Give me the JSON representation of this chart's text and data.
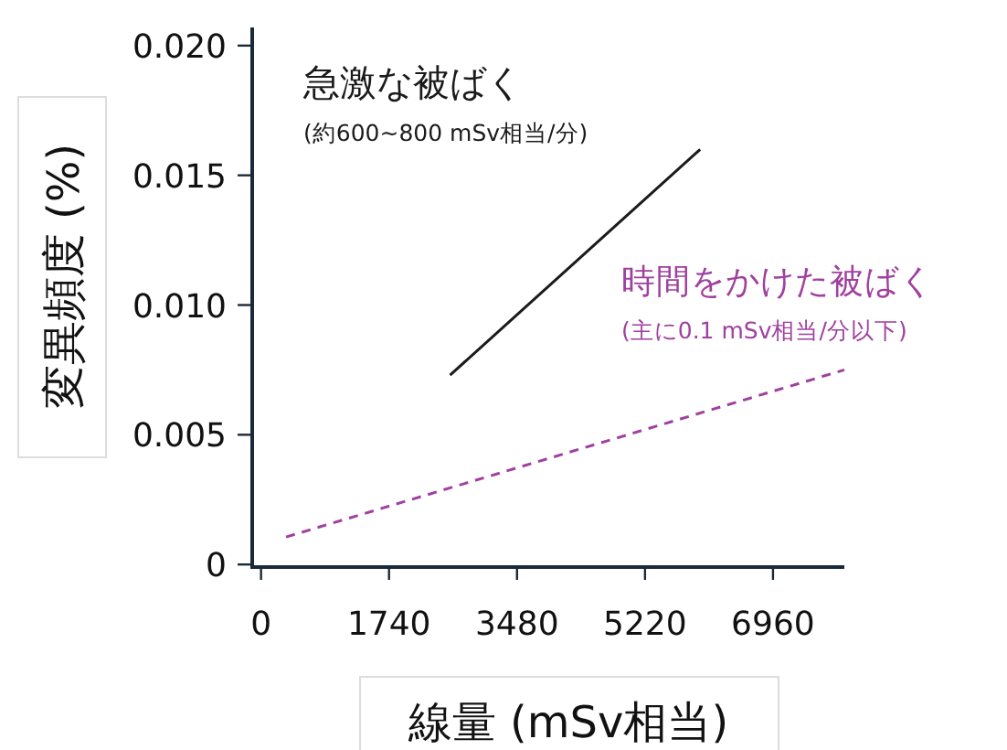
{
  "chart_data": {
    "type": "line",
    "xlabel": "線量 (mSv相当)",
    "ylabel": "変異頻度 (%)",
    "xlim": [
      -120,
      7930
    ],
    "ylim": [
      -0.0001,
      0.0207
    ],
    "xticks": [
      0,
      1740,
      3480,
      5220,
      6960
    ],
    "yticks": [
      {
        "value": 0,
        "label": "0"
      },
      {
        "value": 0.005,
        "label": "0.005"
      },
      {
        "value": 0.01,
        "label": "0.010"
      },
      {
        "value": 0.015,
        "label": "0.015"
      },
      {
        "value": 0.02,
        "label": "0.020"
      }
    ],
    "series": [
      {
        "name": "急激な被ばく",
        "color": "#1a1a1a",
        "line_style": "solid",
        "x": [
          2570,
          5970
        ],
        "values": [
          0.0073,
          0.016
        ]
      },
      {
        "name": "時間をかけた被ばく",
        "color": "#a0409f",
        "line_style": "dashed",
        "x": [
          340,
          7930
        ],
        "values": [
          0.00106,
          0.0075
        ]
      }
    ],
    "annotations": [
      "(約600~800  mSv相当/分)",
      "(主に0.1 mSv相当/分以下)"
    ],
    "grid": false,
    "marker": "none"
  }
}
